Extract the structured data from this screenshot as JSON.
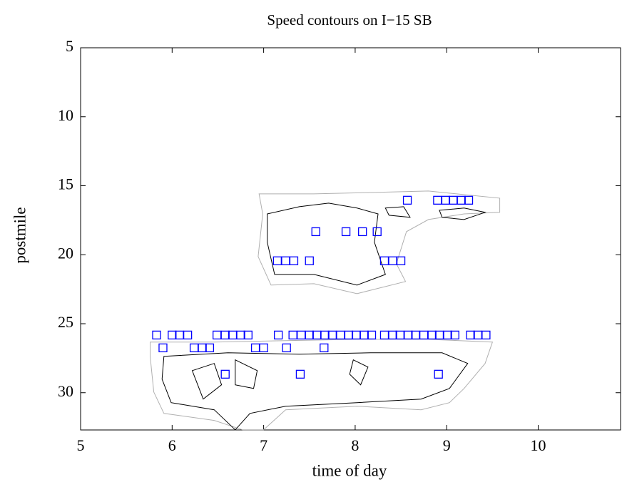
{
  "chart_data": {
    "type": "contour",
    "title": "Speed contours on I−15 SB",
    "xlabel": "time of day",
    "ylabel": "postmile",
    "xlim": [
      5,
      10.9
    ],
    "ylim": [
      5,
      32.7
    ],
    "y_reversed": true,
    "xticks": [
      5,
      6,
      7,
      8,
      9,
      10
    ],
    "yticks": [
      5,
      10,
      15,
      20,
      25,
      30
    ],
    "contours": [
      {
        "color": "#b0b0b0",
        "x": [
          6.95,
          7.55,
          8.17,
          8.8,
          9.58,
          9.58,
          9.19,
          8.8,
          8.56,
          8.45,
          8.55,
          8.02,
          7.55,
          7.08,
          6.94,
          6.99
        ],
        "y": [
          15.59,
          15.59,
          15.49,
          15.38,
          15.9,
          16.93,
          17.04,
          17.45,
          18.33,
          20.65,
          21.94,
          22.82,
          22.1,
          22.2,
          20.13,
          17.04
        ]
      },
      {
        "color": "#000000",
        "x": [
          7.04,
          7.39,
          7.71,
          8.02,
          8.25,
          8.21,
          8.33,
          8.02,
          7.55,
          7.12,
          7.04
        ],
        "y": [
          17.04,
          16.52,
          16.26,
          16.62,
          17.04,
          19.1,
          21.43,
          22.2,
          21.43,
          21.43,
          19.1
        ]
      },
      {
        "color": "#000000",
        "x": [
          8.92,
          9.19,
          9.42,
          9.19,
          8.95
        ],
        "y": [
          16.78,
          16.62,
          16.93,
          17.45,
          17.29
        ]
      },
      {
        "color": "#000000",
        "x": [
          8.33,
          8.53,
          8.6,
          8.37
        ],
        "y": [
          16.62,
          16.52,
          17.29,
          17.14
        ]
      },
      {
        "color": "#b0b0b0",
        "x": [
          5.76,
          6.46,
          7.24,
          8.02,
          8.8,
          9.5,
          9.42,
          9.19,
          9.03,
          8.72,
          8.02,
          7.24,
          7.0,
          6.77,
          6.46,
          5.91,
          5.8,
          5.76
        ],
        "y": [
          26.33,
          26.33,
          26.23,
          26.13,
          26.13,
          26.33,
          27.88,
          29.69,
          30.72,
          31.24,
          30.98,
          31.24,
          32.69,
          32.69,
          32.01,
          31.5,
          29.95,
          27.36
        ]
      },
      {
        "color": "#000000",
        "x": [
          5.91,
          6.61,
          7.39,
          8.17,
          8.95,
          9.23,
          9.03,
          8.72,
          8.02,
          7.24,
          6.85,
          6.69,
          6.46,
          5.99,
          5.89
        ],
        "y": [
          27.36,
          27.11,
          27.21,
          27.11,
          27.11,
          27.88,
          29.69,
          30.46,
          30.72,
          30.98,
          31.5,
          32.69,
          31.24,
          30.72,
          29.02
        ]
      },
      {
        "color": "#000000",
        "x": [
          7.98,
          8.14,
          8.06,
          7.94
        ],
        "y": [
          27.62,
          28.14,
          29.43,
          28.66
        ]
      },
      {
        "color": "#000000",
        "x": [
          6.69,
          6.93,
          6.89,
          6.69
        ],
        "y": [
          27.62,
          28.4,
          29.69,
          29.43
        ]
      },
      {
        "color": "#000000",
        "x": [
          6.22,
          6.46,
          6.54,
          6.34
        ],
        "y": [
          28.4,
          27.88,
          29.43,
          30.46
        ]
      }
    ],
    "scatter": {
      "color": "#0000ff",
      "marker": "square",
      "x": [
        8.57,
        8.9,
        8.99,
        9.07,
        9.16,
        9.24,
        7.57,
        7.9,
        8.08,
        8.24,
        7.15,
        7.24,
        7.33,
        7.5,
        8.32,
        8.41,
        8.5,
        5.83,
        6.0,
        6.08,
        6.17,
        6.49,
        6.58,
        6.66,
        6.75,
        6.83,
        7.16,
        7.32,
        7.41,
        7.5,
        7.58,
        7.67,
        7.75,
        7.84,
        7.93,
        8.01,
        8.1,
        8.18,
        8.32,
        8.41,
        8.49,
        8.58,
        8.66,
        8.75,
        8.84,
        8.92,
        9.01,
        9.09,
        9.26,
        9.34,
        9.43,
        5.9,
        6.24,
        6.33,
        6.41,
        6.91,
        7.0,
        7.25,
        7.66,
        6.58,
        7.4,
        8.91
      ],
      "y": [
        16.05,
        16.05,
        16.05,
        16.05,
        16.05,
        16.05,
        18.33,
        18.33,
        18.33,
        18.33,
        20.44,
        20.44,
        20.44,
        20.44,
        20.44,
        20.44,
        20.44,
        25.82,
        25.82,
        25.82,
        25.82,
        25.82,
        25.82,
        25.82,
        25.82,
        25.82,
        25.82,
        25.82,
        25.82,
        25.82,
        25.82,
        25.82,
        25.82,
        25.82,
        25.82,
        25.82,
        25.82,
        25.82,
        25.82,
        25.82,
        25.82,
        25.82,
        25.82,
        25.82,
        25.82,
        25.82,
        25.82,
        25.82,
        25.82,
        25.82,
        25.82,
        26.75,
        26.75,
        26.75,
        26.75,
        26.75,
        26.75,
        26.75,
        26.75,
        28.66,
        28.66,
        28.66
      ]
    }
  }
}
